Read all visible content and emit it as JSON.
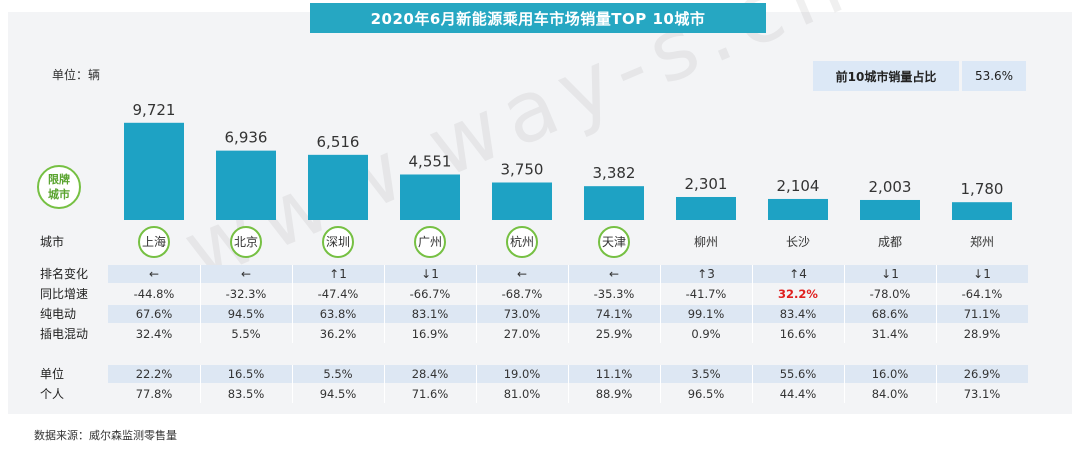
{
  "title": "2020年6月新能源乘用车市场销量TOP 10城市",
  "unit_label": "单位：辆",
  "share": {
    "label": "前10城市销量占比",
    "value": "53.6%"
  },
  "legend_label": "限牌城市",
  "watermark": "www.way-s.cn",
  "source": "数据来源：威尔森监测零售量",
  "colors": {
    "bar": "#1ea2c4",
    "banner": "#26a7c2",
    "limited_ring": "#76c043",
    "highlight": "#e02020"
  },
  "chart_data": {
    "type": "bar",
    "categories": [
      "上海",
      "北京",
      "深圳",
      "广州",
      "杭州",
      "天津",
      "柳州",
      "长沙",
      "成都",
      "郑州"
    ],
    "values": [
      9721,
      6936,
      6516,
      4551,
      3750,
      3382,
      2301,
      2104,
      2003,
      1780
    ],
    "value_labels": [
      "9,721",
      "6,936",
      "6,516",
      "4,551",
      "3,750",
      "3,382",
      "2,301",
      "2,104",
      "2,003",
      "1,780"
    ],
    "limited_cities": [
      true,
      true,
      true,
      true,
      true,
      true,
      false,
      false,
      false,
      false
    ],
    "ylim": [
      0,
      10000
    ],
    "city_header": "城市"
  },
  "table": {
    "rows": [
      {
        "label": "排名变化",
        "shaded": true,
        "arrow": true,
        "values": [
          "←",
          "←",
          "↑1",
          "↓1",
          "←",
          "←",
          "↑3",
          "↑4",
          "↓1",
          "↓1"
        ]
      },
      {
        "label": "同比增速",
        "shaded": false,
        "values": [
          "-44.8%",
          "-32.3%",
          "-47.4%",
          "-66.7%",
          "-68.7%",
          "-35.3%",
          "-41.7%",
          "32.2%",
          "-78.0%",
          "-64.1%"
        ],
        "highlight_index": 7
      },
      {
        "label": "纯电动",
        "shaded": true,
        "values": [
          "67.6%",
          "94.5%",
          "63.8%",
          "83.1%",
          "73.0%",
          "74.1%",
          "99.1%",
          "83.4%",
          "68.6%",
          "71.1%"
        ]
      },
      {
        "label": "插电混动",
        "shaded": false,
        "values": [
          "32.4%",
          "5.5%",
          "36.2%",
          "16.9%",
          "27.0%",
          "25.9%",
          "0.9%",
          "16.6%",
          "31.4%",
          "28.9%"
        ]
      },
      {
        "label": "单位",
        "shaded": true,
        "values": [
          "22.2%",
          "16.5%",
          "5.5%",
          "28.4%",
          "19.0%",
          "11.1%",
          "3.5%",
          "55.6%",
          "16.0%",
          "26.9%"
        ]
      },
      {
        "label": "个人",
        "shaded": false,
        "values": [
          "77.8%",
          "83.5%",
          "94.5%",
          "71.6%",
          "81.0%",
          "88.9%",
          "96.5%",
          "44.4%",
          "84.0%",
          "73.1%"
        ]
      }
    ]
  }
}
